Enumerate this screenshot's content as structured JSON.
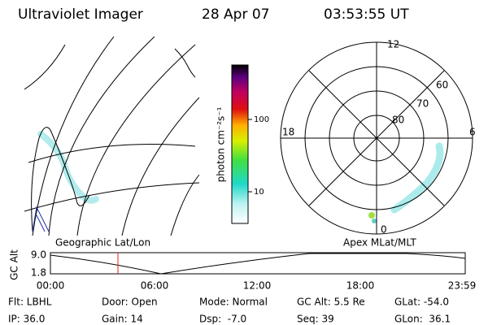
{
  "header": {
    "title": "Ultraviolet Imager",
    "date": "28 Apr 07",
    "time": "03:53:55 UT"
  },
  "colorbar": {
    "label": "photon cm⁻²s⁻¹",
    "ticks": [
      "100",
      "10"
    ]
  },
  "polar": {
    "mlt_labels": [
      "12",
      "18",
      "6",
      "0"
    ],
    "lat_labels": [
      "60",
      "70",
      "80"
    ]
  },
  "panel_titles": {
    "left": "Geographic Lat/Lon",
    "right": "Apex MLat/MLT"
  },
  "timeline": {
    "ylabel": "GC Alt",
    "yticks": [
      "9.0",
      "1.8"
    ],
    "xticks": [
      "00:00",
      "06:00",
      "12:00",
      "18:00",
      "23:59"
    ]
  },
  "info": {
    "rows": [
      [
        "Flt: LBHL",
        "Door: Open",
        "Mode: Normal",
        "GC Alt: 5.5 Re",
        "GLat: -54.0"
      ],
      [
        "IP: 36.0",
        "Gain: 14",
        "Dsp:  -7.0",
        "Seq: 39",
        "GLon:  36.1"
      ]
    ]
  }
}
